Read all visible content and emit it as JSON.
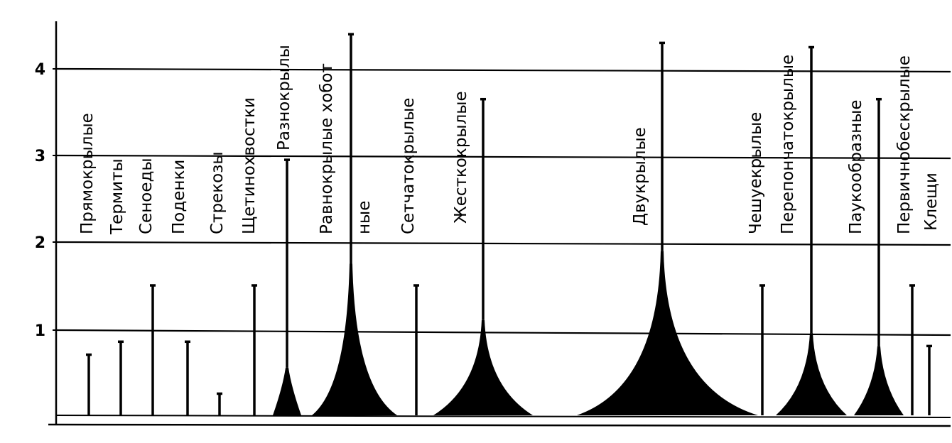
{
  "chart_data": {
    "type": "vertical-profile",
    "ylim": [
      0,
      4.5
    ],
    "yticks": [
      "1",
      "2",
      "3",
      "4"
    ],
    "grid": true,
    "colors": {
      "ink": "#000000",
      "background": "#ffffff"
    },
    "groups": [
      {
        "label": "Прямокрылые",
        "top": 0.7,
        "shape": "stem"
      },
      {
        "label": "Термиты",
        "top": 0.85,
        "shape": "stem"
      },
      {
        "label": "Сеноеды",
        "top": 1.5,
        "shape": "stem"
      },
      {
        "label": "Поденки",
        "top": 0.85,
        "shape": "stem"
      },
      {
        "label": "Стрекозы",
        "top": 0.25,
        "shape": "stem"
      },
      {
        "label": "Щетинохвостки",
        "top": 1.5,
        "shape": "stem"
      },
      {
        "label": "Разнокрылы",
        "top": 2.95,
        "shape": "spindle",
        "base_left": 0.2,
        "base_right": 0.2,
        "neck": 0.55
      },
      {
        "label": "Равнокрылые хобот",
        "top": 4.4,
        "shape": "spindle",
        "base_left": 0.55,
        "base_right": 0.65,
        "neck": 1.75
      },
      {
        "label": "ные",
        "top": null,
        "shape": "label"
      },
      {
        "label": "Сетчатокрылые",
        "top": 1.5,
        "shape": "stem"
      },
      {
        "label": "Жесткокрылые",
        "top": 3.65,
        "shape": "spindle",
        "base_left": 0.7,
        "base_right": 0.7,
        "neck": 1.1
      },
      {
        "label": "Двукрылые",
        "top": 4.3,
        "shape": "spindle",
        "base_left": 1.2,
        "base_right": 1.35,
        "neck": 1.9
      },
      {
        "label": "Чешуекрылые",
        "top": 1.5,
        "shape": "stem"
      },
      {
        "label": "Перепончатокрылые",
        "top": 4.25,
        "shape": "spindle",
        "base_left": 0.5,
        "base_right": 0.5,
        "neck": 0.95
      },
      {
        "label": "Паукообразные",
        "top": 3.65,
        "shape": "spindle",
        "base_left": 0.35,
        "base_right": 0.35,
        "neck": 0.8
      },
      {
        "label": "Первичнобескрылые",
        "top": 1.5,
        "shape": "stem"
      },
      {
        "label": "Клещи",
        "top": 0.8,
        "shape": "stem"
      }
    ]
  }
}
